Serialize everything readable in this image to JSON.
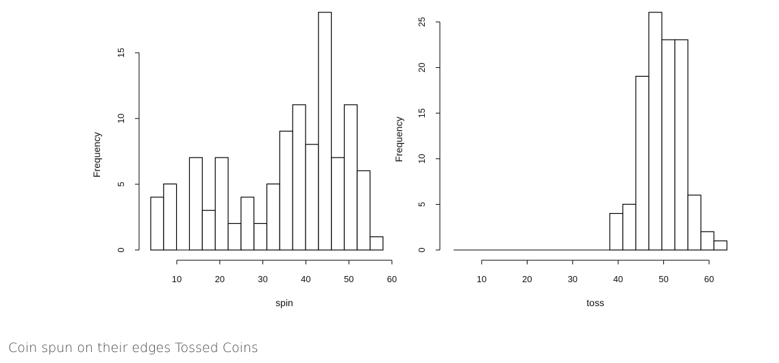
{
  "chart_data": [
    {
      "type": "bar",
      "histogram": true,
      "bin_edges": [
        5,
        8,
        11,
        14,
        17,
        20,
        23,
        26,
        29,
        32,
        35,
        38,
        41,
        44,
        47,
        50,
        53,
        56,
        59
      ],
      "values": [
        4,
        5,
        0,
        7,
        3,
        7,
        2,
        4,
        2,
        5,
        9,
        11,
        8,
        18,
        7,
        11,
        6,
        1
      ],
      "xlabel": "spin",
      "ylabel": "Frequency",
      "x_ticks": [
        10,
        20,
        30,
        40,
        50,
        60
      ],
      "y_ticks": [
        0,
        5,
        10,
        15
      ],
      "xlim": [
        5,
        59
      ],
      "ylim": [
        0,
        18
      ],
      "grid": false
    },
    {
      "type": "bar",
      "histogram": true,
      "bin_edges": [
        0,
        3,
        6,
        9,
        12,
        15,
        18,
        21,
        24,
        27,
        30,
        33,
        36,
        39,
        42,
        45,
        48,
        51,
        54,
        57,
        60,
        63
      ],
      "values": [
        0,
        0,
        0,
        0,
        0,
        0,
        0,
        0,
        0,
        0,
        0,
        0,
        4,
        5,
        19,
        26,
        23,
        23,
        6,
        2,
        1
      ],
      "xlabel": "toss",
      "ylabel": "Frequency",
      "x_ticks": [
        10,
        20,
        30,
        40,
        50,
        60
      ],
      "y_ticks": [
        0,
        5,
        10,
        15,
        20,
        25
      ],
      "xlim": [
        0,
        63
      ],
      "ylim": [
        0,
        26
      ],
      "grid": false
    }
  ],
  "caption": "Coin spun on their edges Tossed Coins"
}
